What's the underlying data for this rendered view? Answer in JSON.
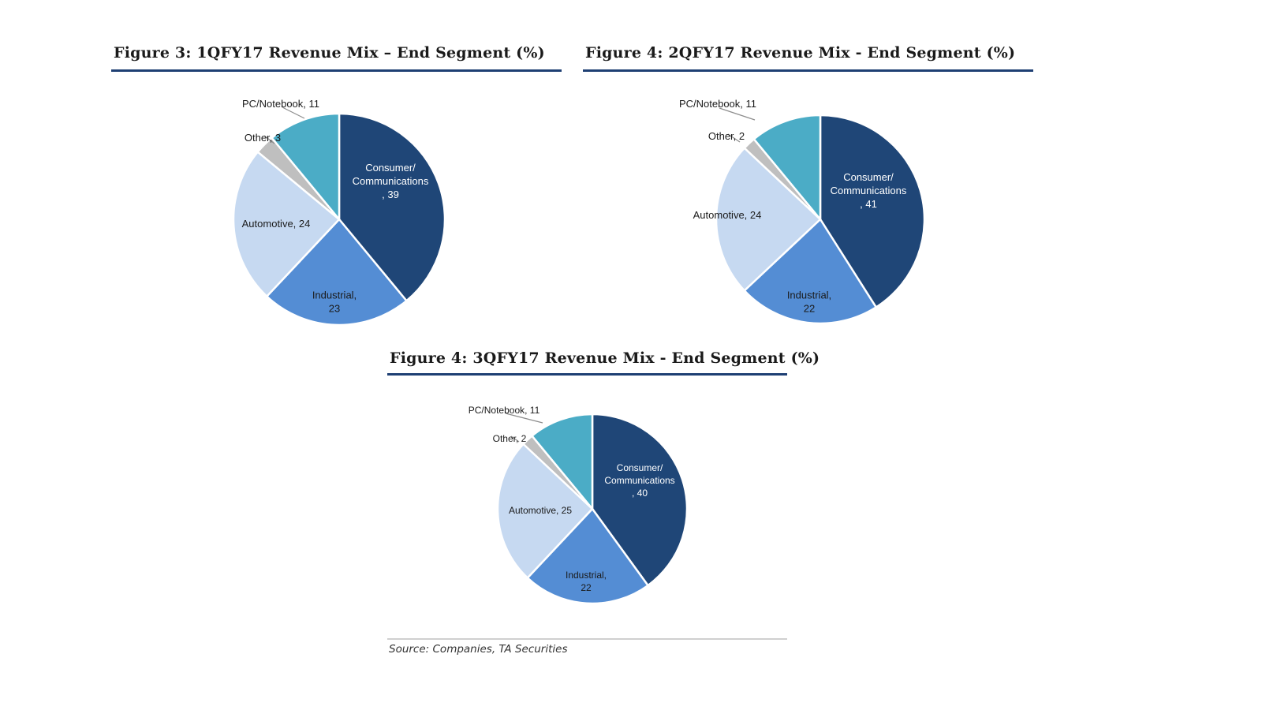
{
  "colors": {
    "consumer": "#1f4677",
    "industrial": "#548dd4",
    "automotive": "#c6d9f1",
    "other": "#bfbfbf",
    "pc": "#4bacc6",
    "rule": "#1e3f73"
  },
  "figures": [
    {
      "title": "Figure 3: 1QFY17 Revenue Mix – End Segment (%)"
    },
    {
      "title": "Figure 4: 2QFY17 Revenue Mix - End Segment (%)"
    },
    {
      "title": "Figure 4: 3QFY17 Revenue Mix - End Segment (%)"
    }
  ],
  "source": "Source: Companies, TA Securities",
  "chart_data": [
    {
      "type": "pie",
      "title": "Figure 3: 1QFY17 Revenue Mix – End Segment (%)",
      "slices": [
        {
          "name": "Consumer/ Communications",
          "value": 39,
          "label_lines": [
            "Consumer/",
            "Communications",
            ", 39"
          ],
          "color": "#1f4677",
          "text_color": "#ffffff"
        },
        {
          "name": "Industrial",
          "value": 23,
          "label_lines": [
            "Industrial,",
            "23"
          ],
          "color": "#548dd4",
          "text_color": "#1a1a1a"
        },
        {
          "name": "Automotive",
          "value": 24,
          "label_lines": [
            "Automotive, 24"
          ],
          "color": "#c6d9f1",
          "text_color": "#1a1a1a"
        },
        {
          "name": "Other",
          "value": 3,
          "label_lines": [
            "Other, 3"
          ],
          "color": "#bfbfbf",
          "text_color": "#1a1a1a"
        },
        {
          "name": "PC/Notebook",
          "value": 11,
          "label_lines": [
            "PC/Notebook, 11"
          ],
          "color": "#4bacc6",
          "text_color": "#1a1a1a"
        }
      ]
    },
    {
      "type": "pie",
      "title": "Figure 4: 2QFY17 Revenue Mix - End Segment (%)",
      "slices": [
        {
          "name": "Consumer/ Communications",
          "value": 41,
          "label_lines": [
            "Consumer/",
            "Communications",
            ", 41"
          ],
          "color": "#1f4677",
          "text_color": "#ffffff"
        },
        {
          "name": "Industrial",
          "value": 22,
          "label_lines": [
            "Industrial,",
            "22"
          ],
          "color": "#548dd4",
          "text_color": "#1a1a1a"
        },
        {
          "name": "Automotive",
          "value": 24,
          "label_lines": [
            "Automotive, 24"
          ],
          "color": "#c6d9f1",
          "text_color": "#1a1a1a"
        },
        {
          "name": "Other",
          "value": 2,
          "label_lines": [
            "Other, 2"
          ],
          "color": "#bfbfbf",
          "text_color": "#1a1a1a"
        },
        {
          "name": "PC/Notebook",
          "value": 11,
          "label_lines": [
            "PC/Notebook, 11"
          ],
          "color": "#4bacc6",
          "text_color": "#1a1a1a"
        }
      ]
    },
    {
      "type": "pie",
      "title": "Figure 4: 3QFY17 Revenue Mix - End Segment (%)",
      "slices": [
        {
          "name": "Consumer/ Communications",
          "value": 40,
          "label_lines": [
            "Consumer/",
            "Communications",
            ", 40"
          ],
          "color": "#1f4677",
          "text_color": "#ffffff"
        },
        {
          "name": "Industrial",
          "value": 22,
          "label_lines": [
            "Industrial,",
            "22"
          ],
          "color": "#548dd4",
          "text_color": "#1a1a1a"
        },
        {
          "name": "Automotive",
          "value": 25,
          "label_lines": [
            "Automotive, 25"
          ],
          "color": "#c6d9f1",
          "text_color": "#1a1a1a"
        },
        {
          "name": "Other",
          "value": 2,
          "label_lines": [
            "Other, 2"
          ],
          "color": "#bfbfbf",
          "text_color": "#1a1a1a"
        },
        {
          "name": "PC/Notebook",
          "value": 11,
          "label_lines": [
            "PC/Notebook, 11"
          ],
          "color": "#4bacc6",
          "text_color": "#1a1a1a"
        }
      ]
    }
  ]
}
